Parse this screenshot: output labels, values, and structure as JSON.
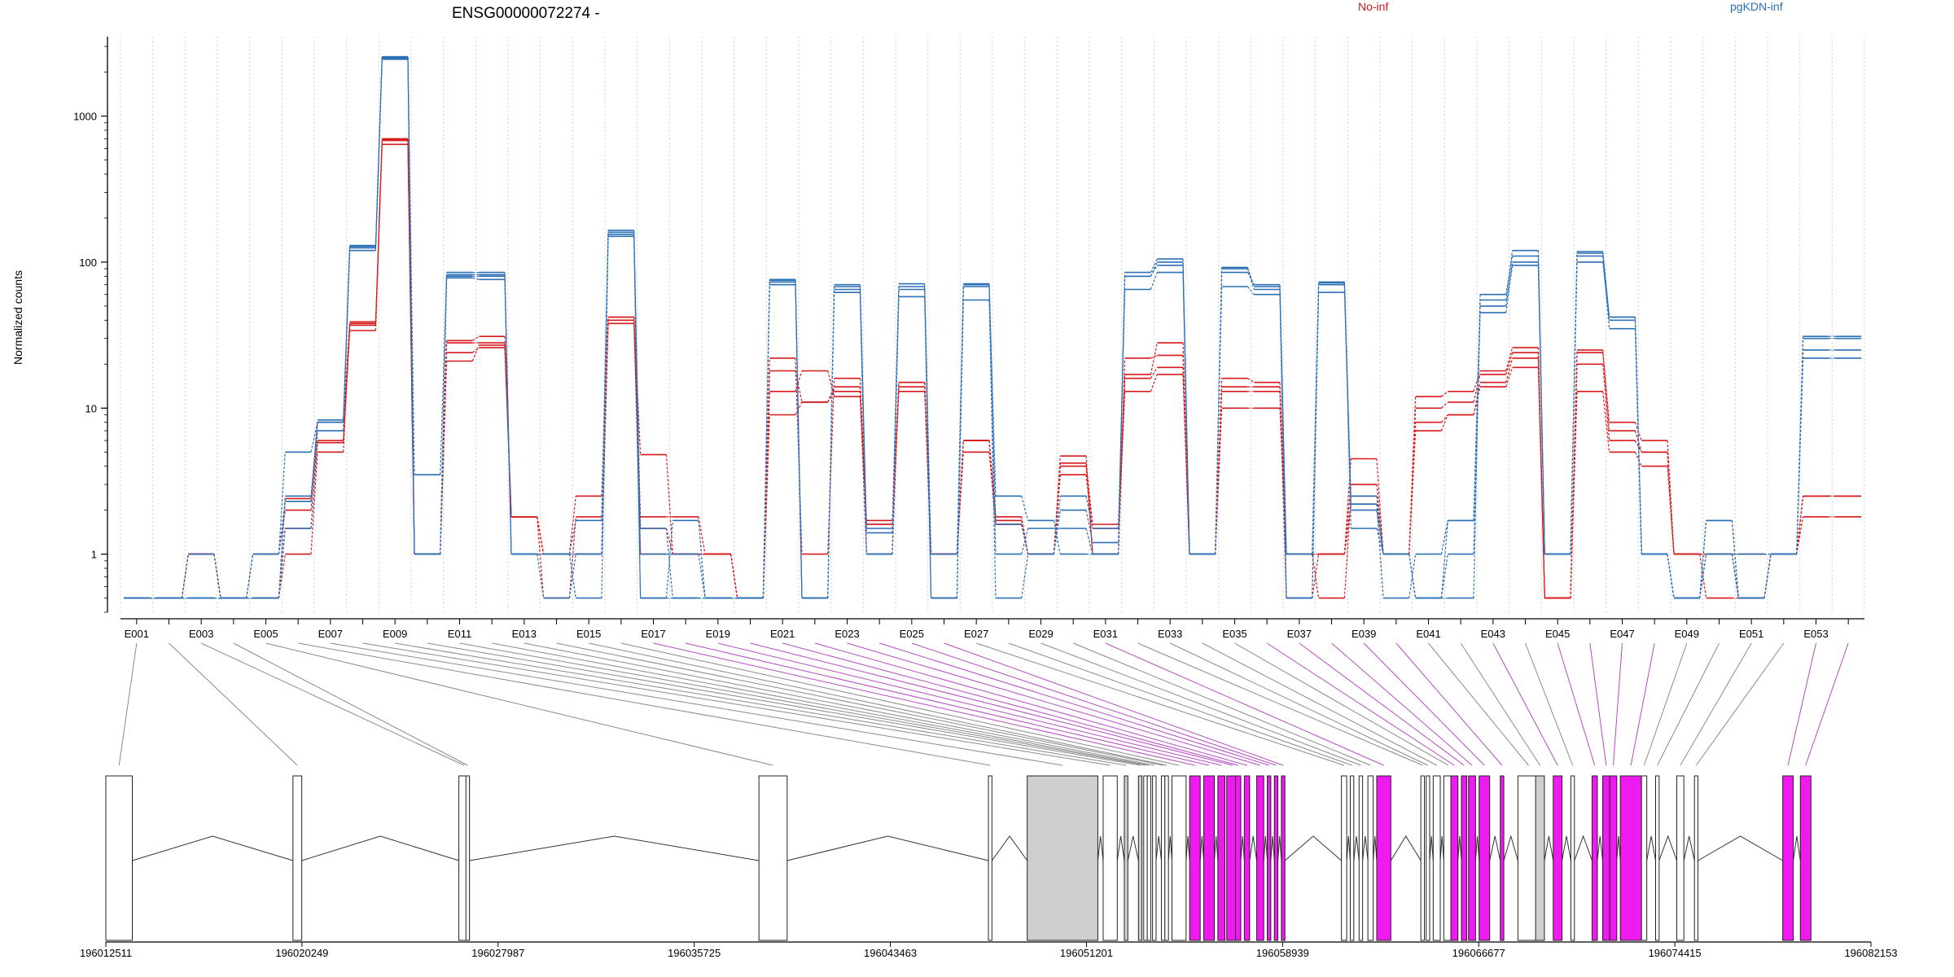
{
  "chart_data": {
    "type": "line",
    "title": "ENSG00000072274 -",
    "ylabel": "Normalized counts",
    "yscale": "log",
    "ylim": [
      0.4,
      3500
    ],
    "yticks": [
      1,
      10,
      100,
      1000
    ],
    "ytick_labels": [
      "1",
      "10",
      "100",
      "1000"
    ],
    "grid": "vertical dotted",
    "legend": [
      {
        "name": "No-inf",
        "color": "#d7191c",
        "placement": "top-center"
      },
      {
        "name": "pgKDN-inf",
        "color": "#2b6fb5",
        "placement": "top-right"
      }
    ],
    "exon_tick_labels": [
      "E001",
      "E003",
      "E005",
      "E007",
      "E009",
      "E011",
      "E013",
      "E015",
      "E017",
      "E019",
      "E021",
      "E023",
      "E025",
      "E027",
      "E029",
      "E031",
      "E033",
      "E035",
      "E037",
      "E039",
      "E041",
      "E043",
      "E045",
      "E047",
      "E049",
      "E051",
      "E053"
    ],
    "genomic_tick_labels": [
      "196012511",
      "196020249",
      "196027987",
      "196035725",
      "196043463",
      "196051201",
      "196058939",
      "196066677",
      "196074415",
      "196082153"
    ],
    "genomic_range": [
      196012511,
      196082153
    ],
    "exon_count": 54,
    "series": [
      {
        "name": "No-inf",
        "color": "#d7191c",
        "values": [
          0.5,
          0.5,
          1,
          0.5,
          0.5,
          2.4,
          5.8,
          34,
          700,
          1,
          28,
          28,
          1.8,
          1,
          2.5,
          42,
          4.8,
          1,
          1,
          0.5,
          22,
          1,
          16,
          1.6,
          15,
          1,
          6,
          1.8,
          1,
          4.7,
          1,
          22,
          23,
          1,
          13,
          13,
          0.5,
          1,
          4.5,
          1,
          12,
          13,
          18,
          26,
          0.5,
          25,
          7,
          5,
          1,
          1,
          1,
          1,
          2.5,
          2.5
        ]
      },
      {
        "name": "No-inf",
        "color": "#d7191c",
        "values": [
          0.5,
          0.5,
          1,
          0.5,
          1,
          2,
          8,
          38,
          680,
          1,
          24,
          26,
          1.8,
          1,
          1,
          40,
          1.8,
          1.8,
          1,
          0.5,
          18,
          11,
          14,
          1.6,
          13,
          1,
          5,
          1.6,
          1,
          4,
          1,
          16,
          19,
          1,
          14,
          14,
          1,
          1,
          3,
          1,
          10,
          11,
          17,
          24,
          0.5,
          20,
          6,
          5,
          1,
          1,
          0.5,
          1,
          1.8,
          1.8
        ]
      },
      {
        "name": "No-inf",
        "color": "#d7191c",
        "values": [
          0.5,
          0.5,
          1,
          0.5,
          0.5,
          1.5,
          6,
          37,
          640,
          1,
          21,
          27,
          1.8,
          1,
          1,
          38,
          1,
          1,
          1,
          0.5,
          9,
          11,
          13,
          1,
          15,
          1,
          6,
          1.6,
          1,
          3.5,
          1.5,
          13,
          17,
          1,
          16,
          15,
          1,
          0.5,
          2.5,
          1,
          8,
          9,
          15,
          22,
          0.5,
          13,
          5,
          4,
          1,
          1,
          0.5,
          1,
          2.5,
          2.5
        ]
      },
      {
        "name": "No-inf",
        "color": "#d7191c",
        "values": [
          0.5,
          0.5,
          1,
          0.5,
          0.5,
          1,
          5,
          39,
          690,
          1,
          29,
          31,
          1.8,
          0.5,
          1.8,
          42,
          1.5,
          1,
          1,
          0.5,
          13,
          18,
          12,
          1.7,
          14,
          1,
          6,
          1.7,
          1,
          4.2,
          1.6,
          17,
          28,
          1,
          10,
          10,
          1,
          1,
          2.2,
          1,
          7,
          9,
          14,
          19,
          0.5,
          24,
          8,
          6,
          1,
          0.5,
          0.5,
          1,
          2.5,
          2.5
        ]
      },
      {
        "name": "pgKDN-inf",
        "color": "#2b6fb5",
        "values": [
          0.5,
          0.5,
          1,
          0.5,
          0.5,
          2.5,
          8,
          120,
          2500,
          3.5,
          80,
          80,
          1,
          1,
          0.5,
          150,
          0.5,
          1.7,
          0.5,
          0.5,
          75,
          0.5,
          65,
          1,
          65,
          1,
          68,
          2.5,
          1.7,
          1,
          1,
          80,
          95,
          1,
          90,
          65,
          1,
          70,
          2.2,
          0.5,
          1,
          1.7,
          50,
          100,
          1,
          115,
          42,
          1,
          0.5,
          1.7,
          0.5,
          1,
          30,
          30
        ]
      },
      {
        "name": "pgKDN-inf",
        "color": "#2b6fb5",
        "values": [
          0.5,
          0.5,
          0.5,
          0.5,
          1,
          5,
          8,
          130,
          2550,
          1,
          85,
          85,
          1,
          1,
          1.7,
          165,
          0.5,
          0.5,
          0.5,
          0.5,
          73,
          0.5,
          62,
          1,
          58,
          0.5,
          70,
          1,
          1.5,
          1.5,
          1,
          85,
          105,
          1,
          85,
          70,
          0.5,
          72,
          1.5,
          1,
          0.5,
          0.5,
          60,
          110,
          1,
          100,
          40,
          1,
          0.5,
          1,
          1,
          1,
          25,
          25
        ]
      },
      {
        "name": "pgKDN-inf",
        "color": "#2b6fb5",
        "values": [
          0.5,
          0.5,
          0.5,
          0.5,
          0.5,
          1.5,
          7,
          125,
          2450,
          1,
          78,
          76,
          1,
          0.5,
          1,
          155,
          1.5,
          0.5,
          0.5,
          0.5,
          70,
          0.5,
          68,
          1.5,
          68,
          0.5,
          55,
          0.5,
          1,
          2.5,
          1.5,
          65,
          85,
          1,
          68,
          60,
          0.5,
          62,
          2.5,
          1,
          0.5,
          1,
          45,
          95,
          1,
          110,
          35,
          1,
          0.5,
          1,
          0.5,
          1,
          22,
          22
        ]
      },
      {
        "name": "pgKDN-inf",
        "color": "#2b6fb5",
        "values": [
          0.5,
          0.5,
          0.5,
          0.5,
          1,
          2.3,
          8.3,
          128,
          2520,
          1,
          82,
          82,
          1,
          1,
          1,
          160,
          1,
          1,
          0.5,
          0.5,
          76,
          0.5,
          70,
          1.4,
          71,
          0.5,
          71,
          1.6,
          1,
          2,
          1.2,
          80,
          100,
          1,
          92,
          68,
          1,
          73,
          2,
          1,
          0.5,
          1.7,
          55,
          120,
          1,
          118,
          42,
          1,
          0.5,
          1.7,
          0.5,
          1,
          31,
          31
        ]
      }
    ]
  }
}
